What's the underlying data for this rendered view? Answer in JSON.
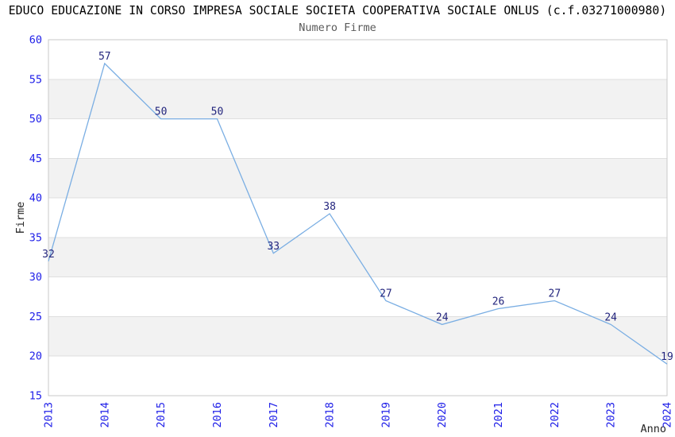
{
  "chart_data": {
    "type": "line",
    "title": "EDUCO EDUCAZIONE IN CORSO IMPRESA SOCIALE SOCIETA COOPERATIVA SOCIALE ONLUS (c.f.03271000980)",
    "subtitle": "Numero Firme",
    "xlabel": "Anno",
    "ylabel": "Firme",
    "x": [
      "2013",
      "2014",
      "2015",
      "2016",
      "2017",
      "2018",
      "2019",
      "2020",
      "2021",
      "2022",
      "2023",
      "2024"
    ],
    "series": [
      {
        "name": "Numero Firme",
        "values": [
          32,
          57,
          50,
          50,
          33,
          38,
          27,
          24,
          26,
          27,
          24,
          19
        ]
      }
    ],
    "ylim": [
      15,
      60
    ],
    "yticks": [
      60,
      55,
      50,
      45,
      40,
      35,
      30,
      25,
      20,
      15
    ],
    "grid": "horizontal-alternating-bands",
    "legend": "none",
    "point_labels_visible": true,
    "style": {
      "line_color": "#7aaee3",
      "tick_label_color": "#1e1ee8",
      "point_label_color": "#23257d",
      "band_color": "#f2f2f2",
      "grid_line_color": "#dfdfdf",
      "plot_border_color": "#c9c9c9",
      "title_color": "#000000",
      "subtitle_color": "#5a5a5a",
      "axis_title_color": "#262626",
      "background_color": "#ffffff"
    }
  }
}
